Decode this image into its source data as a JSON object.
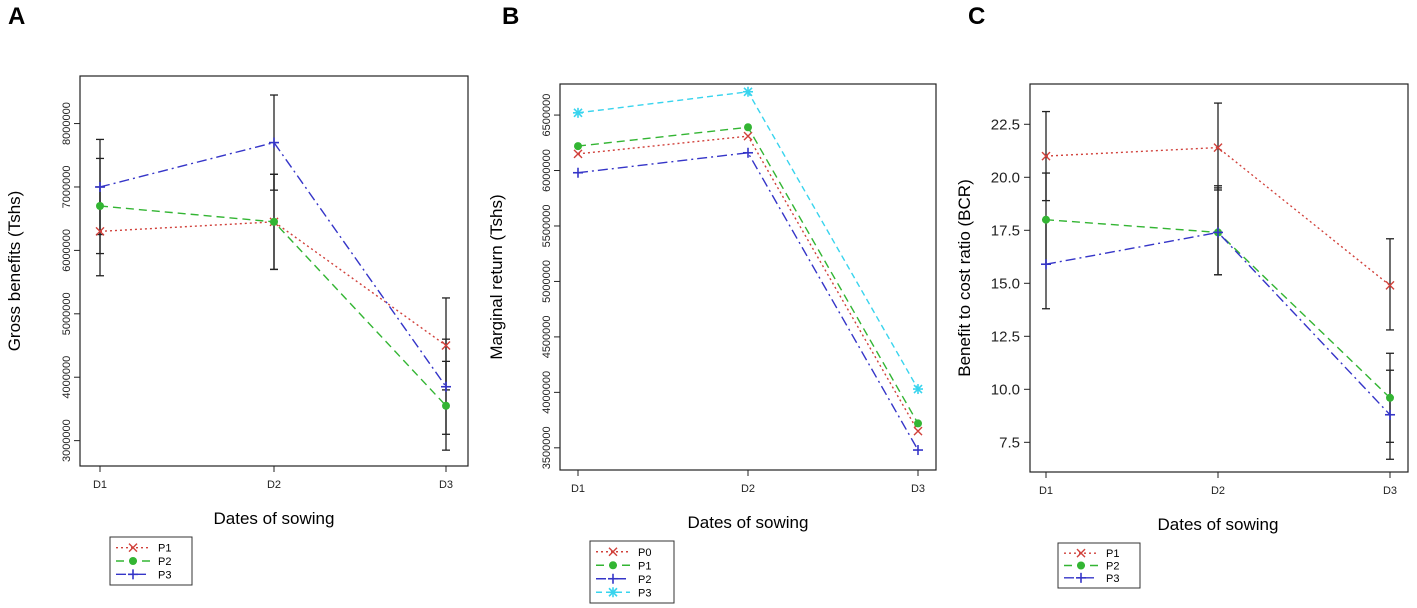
{
  "colors": {
    "P0": "#d1413b",
    "P1": "#d1413b",
    "P2": "#33b533",
    "P3": "#3535c8",
    "P3_cyan": "#38d4ee",
    "errorbar": "#222222"
  },
  "chart_data": [
    {
      "panel": "A",
      "type": "line",
      "xlabel": "Dates of sowing",
      "ylabel": "Gross benefits (Tshs)",
      "categories": [
        "D1",
        "D2",
        "D3"
      ],
      "ylim": [
        2600000,
        8750000
      ],
      "yticks": [
        3000000,
        4000000,
        5000000,
        6000000,
        7000000,
        8000000
      ],
      "ytick_labels": [
        "3000000",
        "4000000",
        "5000000",
        "6000000",
        "7000000",
        "8000000"
      ],
      "legend_position": "bottom-left",
      "series": [
        {
          "name": "P1",
          "color": "P1",
          "marker": "x",
          "dash": "2,3",
          "values": [
            6300000,
            6450000,
            4500000
          ],
          "errors": [
            [
              5600000,
              7000000
            ],
            [
              5700000,
              7200000
            ],
            [
              3800000,
              5250000
            ]
          ]
        },
        {
          "name": "P2",
          "color": "P2",
          "marker": "dot",
          "dash": "8,5",
          "values": [
            6700000,
            6450000,
            3550000
          ],
          "errors": [
            [
              5950000,
              7450000
            ],
            [
              5700000,
              7200000
            ],
            [
              2850000,
              4250000
            ]
          ]
        },
        {
          "name": "P3",
          "color": "P3",
          "marker": "plus",
          "dash": "10,4,2,4",
          "values": [
            7000000,
            7700000,
            3850000
          ],
          "errors": [
            [
              6250000,
              7750000
            ],
            [
              6950000,
              8450000
            ],
            [
              3100000,
              4600000
            ]
          ]
        }
      ]
    },
    {
      "panel": "B",
      "type": "line",
      "xlabel": "Dates of sowing",
      "ylabel": "Marginal return (Tshs)",
      "categories": [
        "D1",
        "D2",
        "D3"
      ],
      "ylim": [
        3300000,
        6780000
      ],
      "yticks": [
        3500000,
        4000000,
        4500000,
        5000000,
        5500000,
        6000000,
        6500000
      ],
      "ytick_labels": [
        "3500000",
        "4000000",
        "4500000",
        "5000000",
        "5500000",
        "6000000",
        "6500000"
      ],
      "legend_position": "bottom-left",
      "series": [
        {
          "name": "P0",
          "color": "P0",
          "marker": "x",
          "dash": "2,3",
          "values": [
            6150000,
            6310000,
            3650000
          ]
        },
        {
          "name": "P1",
          "color": "P2",
          "marker": "dot",
          "dash": "8,5",
          "values": [
            6220000,
            6390000,
            3720000
          ]
        },
        {
          "name": "P2",
          "color": "P3",
          "marker": "plus",
          "dash": "10,4,2,4",
          "values": [
            5980000,
            6160000,
            3480000
          ]
        },
        {
          "name": "P3",
          "color": "P3_cyan",
          "marker": "star",
          "dash": "6,4",
          "values": [
            6520000,
            6710000,
            4030000
          ]
        }
      ]
    },
    {
      "panel": "C",
      "type": "line",
      "xlabel": "Dates of sowing",
      "ylabel": "Benefit to cost ratio (BCR)",
      "categories": [
        "D1",
        "D2",
        "D3"
      ],
      "ylim": [
        6.1,
        24.4
      ],
      "yticks": [
        7.5,
        10.0,
        12.5,
        15.0,
        17.5,
        20.0,
        22.5
      ],
      "ytick_labels": [
        "7.5",
        "10.0",
        "12.5",
        "15.0",
        "17.5",
        "20.0",
        "22.5"
      ],
      "legend_position": "bottom-left",
      "series": [
        {
          "name": "P1",
          "color": "P1",
          "marker": "x",
          "dash": "2,3",
          "values": [
            21.0,
            21.4,
            14.9
          ],
          "errors": [
            [
              18.9,
              23.1
            ],
            [
              19.4,
              23.5
            ],
            [
              12.8,
              17.1
            ]
          ]
        },
        {
          "name": "P2",
          "color": "P2",
          "marker": "dot",
          "dash": "8,5",
          "values": [
            18.0,
            17.4,
            9.6
          ],
          "errors": [
            [
              15.9,
              20.2
            ],
            [
              15.4,
              19.5
            ],
            [
              7.5,
              11.7
            ]
          ]
        },
        {
          "name": "P3",
          "color": "P3",
          "marker": "plus",
          "dash": "10,4,2,4",
          "values": [
            15.9,
            17.4,
            8.8
          ],
          "errors": [
            [
              13.8,
              18.0
            ],
            [
              15.4,
              19.6
            ],
            [
              6.7,
              10.9
            ]
          ]
        }
      ]
    }
  ]
}
